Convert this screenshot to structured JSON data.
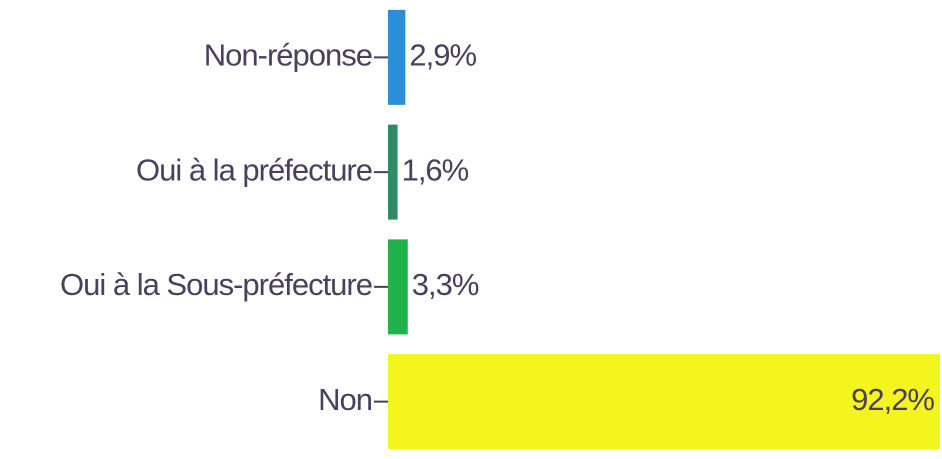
{
  "chart_data": {
    "type": "barh",
    "categories": [
      "Non-réponse",
      "Oui à la préfecture",
      "Oui à la Sous-préfecture",
      "Non"
    ],
    "values": [
      2.9,
      1.6,
      3.3,
      92.2
    ],
    "value_labels": [
      "2,9%",
      "1,6%",
      "3,3%",
      "92,2%"
    ],
    "colors": [
      "#2a8fd8",
      "#2e8b62",
      "#22b24c",
      "#f4f41e"
    ],
    "xlim": [
      0,
      92.2
    ]
  }
}
